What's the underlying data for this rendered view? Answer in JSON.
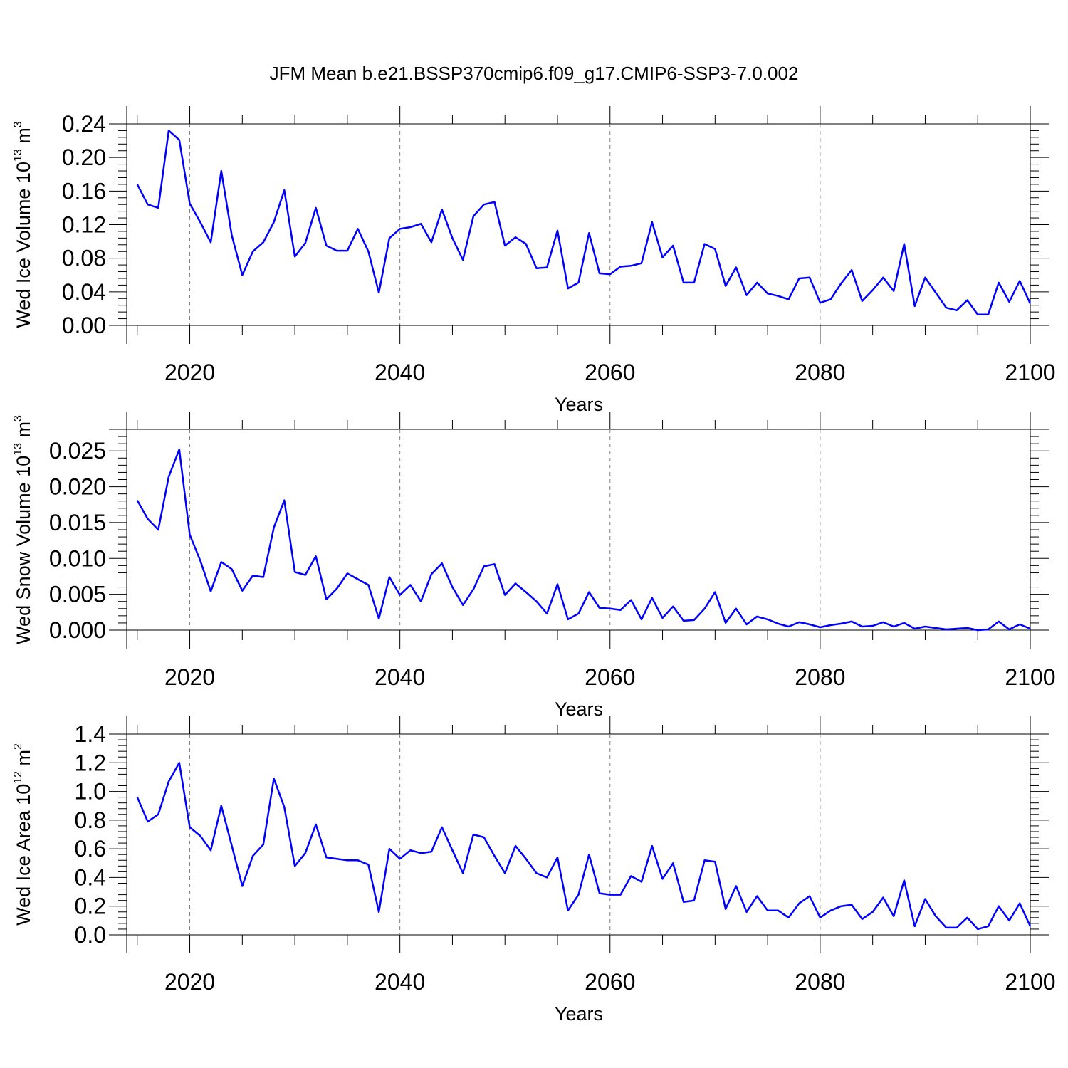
{
  "title": "JFM Mean b.e21.BSSP370cmip6.f09_g17.CMIP6-SSP3-7.0.002",
  "line_color": "#0000ff",
  "chart_data": [
    {
      "type": "line",
      "ylabel": {
        "main": "Wed Ice Volume 10",
        "exp": "13",
        "unit": " m",
        "unit_exp": "3"
      },
      "xlabel": "Years",
      "xlim": [
        2014,
        2100
      ],
      "ylim": [
        0,
        0.24
      ],
      "xticks": [
        "2020",
        "2040",
        "2060",
        "2080",
        "2100"
      ],
      "yticks": [
        "0.00",
        "0.04",
        "0.08",
        "0.12",
        "0.16",
        "0.20",
        "0.24"
      ],
      "grid": "dashed vertical at major x ticks",
      "x": [
        2015,
        2016,
        2017,
        2018,
        2019,
        2020,
        2021,
        2022,
        2023,
        2024,
        2025,
        2026,
        2027,
        2028,
        2029,
        2030,
        2031,
        2032,
        2033,
        2034,
        2035,
        2036,
        2037,
        2038,
        2039,
        2040,
        2041,
        2042,
        2043,
        2044,
        2045,
        2046,
        2047,
        2048,
        2049,
        2050,
        2051,
        2052,
        2053,
        2054,
        2055,
        2056,
        2057,
        2058,
        2059,
        2060,
        2061,
        2062,
        2063,
        2064,
        2065,
        2066,
        2067,
        2068,
        2069,
        2070,
        2071,
        2072,
        2073,
        2074,
        2075,
        2076,
        2077,
        2078,
        2079,
        2080,
        2081,
        2082,
        2083,
        2084,
        2085,
        2086,
        2087,
        2088,
        2089,
        2090,
        2091,
        2092,
        2093,
        2094,
        2095,
        2096,
        2097,
        2098,
        2099,
        2100
      ],
      "series": [
        {
          "values": [
            0.168,
            0.144,
            0.14,
            0.232,
            0.221,
            0.145,
            0.123,
            0.099,
            0.184,
            0.107,
            0.06,
            0.088,
            0.099,
            0.123,
            0.161,
            0.082,
            0.098,
            0.14,
            0.095,
            0.089,
            0.089,
            0.115,
            0.088,
            0.039,
            0.104,
            0.115,
            0.117,
            0.121,
            0.099,
            0.138,
            0.104,
            0.078,
            0.13,
            0.144,
            0.147,
            0.095,
            0.105,
            0.097,
            0.068,
            0.069,
            0.113,
            0.044,
            0.051,
            0.11,
            0.062,
            0.061,
            0.07,
            0.071,
            0.074,
            0.123,
            0.081,
            0.095,
            0.051,
            0.051,
            0.097,
            0.091,
            0.047,
            0.069,
            0.036,
            0.051,
            0.038,
            0.035,
            0.031,
            0.056,
            0.057,
            0.027,
            0.031,
            0.05,
            0.066,
            0.029,
            0.042,
            0.057,
            0.041,
            0.097,
            0.023,
            0.057,
            0.039,
            0.021,
            0.018,
            0.03,
            0.013,
            0.013,
            0.051,
            0.028,
            0.053,
            0.026
          ]
        }
      ]
    },
    {
      "type": "line",
      "ylabel": {
        "main": "Wed Snow Volume 10",
        "exp": "13",
        "unit": " m",
        "unit_exp": "3"
      },
      "xlabel": "Years",
      "xlim": [
        2014,
        2100
      ],
      "ylim": [
        0,
        0.028
      ],
      "xticks": [
        "2020",
        "2040",
        "2060",
        "2080",
        "2100"
      ],
      "yticks": [
        "0.000",
        "0.005",
        "0.010",
        "0.015",
        "0.020",
        "0.025"
      ],
      "grid": "dashed vertical at major x ticks",
      "x": [
        2015,
        2016,
        2017,
        2018,
        2019,
        2020,
        2021,
        2022,
        2023,
        2024,
        2025,
        2026,
        2027,
        2028,
        2029,
        2030,
        2031,
        2032,
        2033,
        2034,
        2035,
        2036,
        2037,
        2038,
        2039,
        2040,
        2041,
        2042,
        2043,
        2044,
        2045,
        2046,
        2047,
        2048,
        2049,
        2050,
        2051,
        2052,
        2053,
        2054,
        2055,
        2056,
        2057,
        2058,
        2059,
        2060,
        2061,
        2062,
        2063,
        2064,
        2065,
        2066,
        2067,
        2068,
        2069,
        2070,
        2071,
        2072,
        2073,
        2074,
        2075,
        2076,
        2077,
        2078,
        2079,
        2080,
        2081,
        2082,
        2083,
        2084,
        2085,
        2086,
        2087,
        2088,
        2089,
        2090,
        2091,
        2092,
        2093,
        2094,
        2095,
        2096,
        2097,
        2098,
        2099,
        2100
      ],
      "series": [
        {
          "values": [
            0.0181,
            0.0155,
            0.014,
            0.0214,
            0.0252,
            0.0133,
            0.0097,
            0.0054,
            0.0095,
            0.0085,
            0.0055,
            0.0076,
            0.0074,
            0.0143,
            0.0181,
            0.0081,
            0.0077,
            0.0103,
            0.0043,
            0.0058,
            0.0079,
            0.0071,
            0.0063,
            0.0016,
            0.0074,
            0.0049,
            0.0063,
            0.004,
            0.0078,
            0.0093,
            0.006,
            0.0035,
            0.0057,
            0.0089,
            0.0092,
            0.0049,
            0.0065,
            0.0053,
            0.004,
            0.0023,
            0.0064,
            0.0015,
            0.0023,
            0.0053,
            0.0031,
            0.003,
            0.0028,
            0.0042,
            0.0015,
            0.0045,
            0.0017,
            0.0033,
            0.0013,
            0.0014,
            0.003,
            0.0053,
            0.001,
            0.003,
            0.0008,
            0.0019,
            0.0015,
            0.0009,
            0.0005,
            0.0011,
            0.0008,
            0.0004,
            0.0007,
            0.0009,
            0.0012,
            0.0005,
            0.0006,
            0.0011,
            0.0005,
            0.001,
            0.0002,
            0.0005,
            0.0003,
            0.0001,
            0.0002,
            0.0003,
            0.0,
            0.0001,
            0.0012,
            0.0001,
            0.0008,
            0.0002
          ]
        }
      ]
    },
    {
      "type": "line",
      "ylabel": {
        "main": "Wed Ice Area 10",
        "exp": "12",
        "unit": " m",
        "unit_exp": "2"
      },
      "xlabel": "Years",
      "xlim": [
        2014,
        2100
      ],
      "ylim": [
        0,
        1.4
      ],
      "xticks": [
        "2020",
        "2040",
        "2060",
        "2080",
        "2100"
      ],
      "yticks": [
        "0.0",
        "0.2",
        "0.4",
        "0.6",
        "0.8",
        "1.0",
        "1.2",
        "1.4"
      ],
      "grid": "dashed vertical at major x ticks",
      "x": [
        2015,
        2016,
        2017,
        2018,
        2019,
        2020,
        2021,
        2022,
        2023,
        2024,
        2025,
        2026,
        2027,
        2028,
        2029,
        2030,
        2031,
        2032,
        2033,
        2034,
        2035,
        2036,
        2037,
        2038,
        2039,
        2040,
        2041,
        2042,
        2043,
        2044,
        2045,
        2046,
        2047,
        2048,
        2049,
        2050,
        2051,
        2052,
        2053,
        2054,
        2055,
        2056,
        2057,
        2058,
        2059,
        2060,
        2061,
        2062,
        2063,
        2064,
        2065,
        2066,
        2067,
        2068,
        2069,
        2070,
        2071,
        2072,
        2073,
        2074,
        2075,
        2076,
        2077,
        2078,
        2079,
        2080,
        2081,
        2082,
        2083,
        2084,
        2085,
        2086,
        2087,
        2088,
        2089,
        2090,
        2091,
        2092,
        2093,
        2094,
        2095,
        2096,
        2097,
        2098,
        2099,
        2100
      ],
      "series": [
        {
          "values": [
            0.96,
            0.79,
            0.84,
            1.07,
            1.2,
            0.75,
            0.69,
            0.59,
            0.9,
            0.62,
            0.34,
            0.55,
            0.63,
            1.09,
            0.89,
            0.48,
            0.57,
            0.77,
            0.54,
            0.53,
            0.52,
            0.52,
            0.49,
            0.16,
            0.6,
            0.53,
            0.59,
            0.57,
            0.58,
            0.75,
            0.59,
            0.43,
            0.7,
            0.68,
            0.55,
            0.43,
            0.62,
            0.53,
            0.43,
            0.4,
            0.54,
            0.17,
            0.28,
            0.56,
            0.29,
            0.28,
            0.28,
            0.41,
            0.37,
            0.62,
            0.39,
            0.5,
            0.23,
            0.24,
            0.52,
            0.51,
            0.18,
            0.34,
            0.16,
            0.27,
            0.17,
            0.17,
            0.12,
            0.22,
            0.27,
            0.12,
            0.17,
            0.2,
            0.21,
            0.11,
            0.16,
            0.26,
            0.13,
            0.38,
            0.06,
            0.25,
            0.13,
            0.05,
            0.05,
            0.12,
            0.04,
            0.06,
            0.2,
            0.1,
            0.22,
            0.06
          ]
        }
      ]
    }
  ]
}
